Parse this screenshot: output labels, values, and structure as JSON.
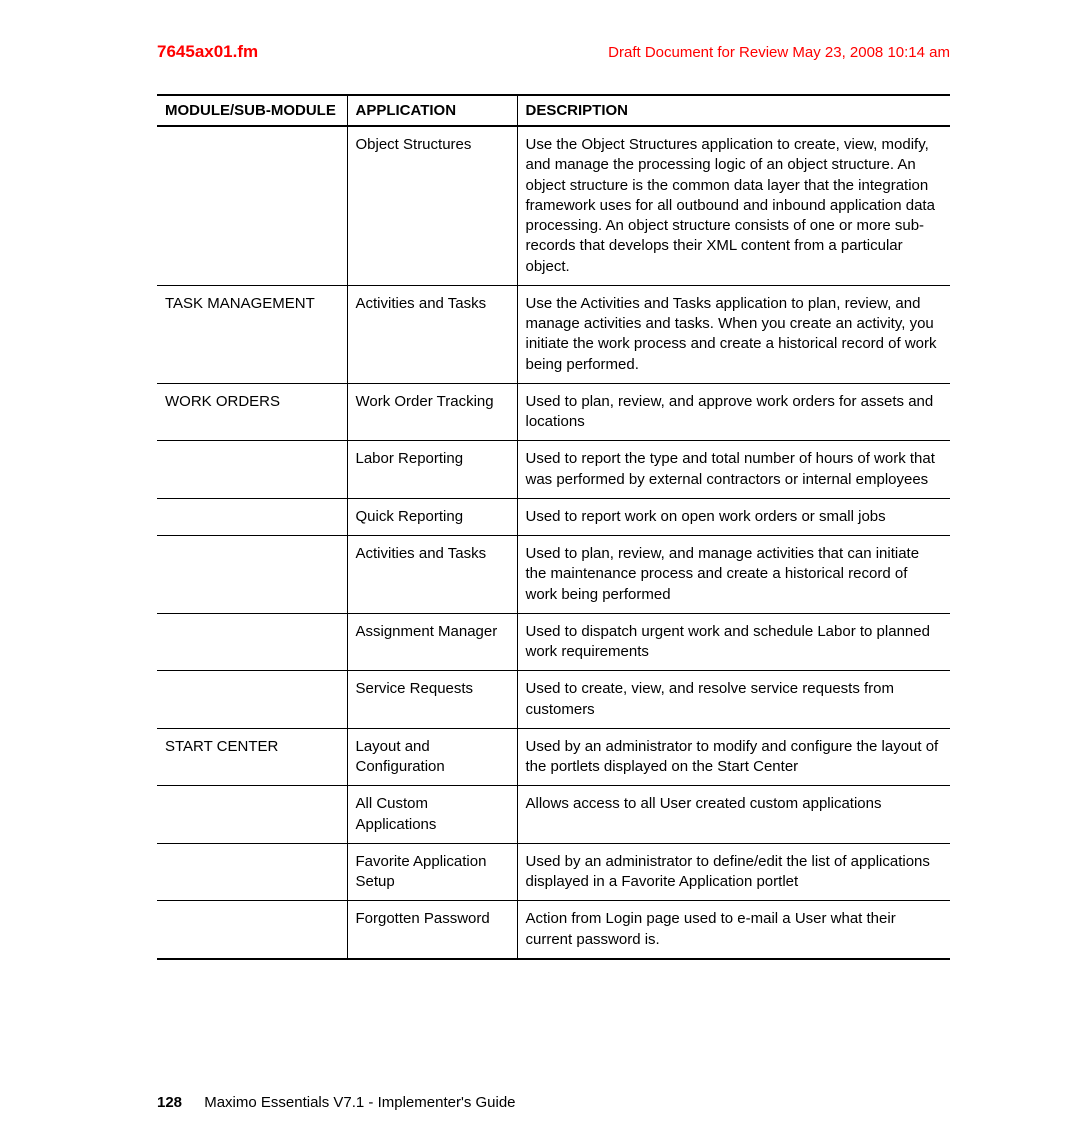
{
  "header": {
    "file": "7645ax01.fm",
    "draft": "Draft Document for Review May 23, 2008 10:14 am"
  },
  "table": {
    "columns": [
      "MODULE/SUB-MODULE",
      "APPLICATION",
      "DESCRIPTION"
    ],
    "rows": [
      {
        "module": "",
        "application": "Object Structures",
        "description": "Use the Object Structures application to create, view, modify, and manage the processing logic of an object structure. An object structure is the common data layer that the integration framework uses for all outbound and inbound application data processing. An object structure consists of one or more sub-records that develops their XML content from a particular object."
      },
      {
        "module": "TASK MANAGEMENT",
        "application": "Activities and Tasks",
        "description": "Use the Activities and Tasks application to plan, review, and manage activities and tasks. When you create an activity, you initiate the work process and create a historical record of work being performed."
      },
      {
        "module": "WORK ORDERS",
        "application": "Work Order Tracking",
        "description": "Used to plan, review, and approve work orders for assets and locations"
      },
      {
        "module": "",
        "application": "Labor Reporting",
        "description": "Used to report the type and total number of hours of work that was performed by external contractors or internal employees"
      },
      {
        "module": "",
        "application": "Quick Reporting",
        "description": "Used to report work on open work orders or small jobs"
      },
      {
        "module": "",
        "application": "Activities and Tasks",
        "description": "Used to plan, review, and manage activities that can initiate the maintenance process and create a historical record of work being performed"
      },
      {
        "module": "",
        "application": "Assignment Manager",
        "description": "Used to dispatch urgent work and schedule Labor to planned work requirements"
      },
      {
        "module": "",
        "application": "Service Requests",
        "description": "Used to create, view, and resolve service requests from customers"
      },
      {
        "module": "START CENTER",
        "application": "Layout and Configuration",
        "description": "Used by an administrator to modify and configure the layout of the portlets displayed on the Start Center"
      },
      {
        "module": "",
        "application": "All Custom Applications",
        "description": "Allows access to all User created custom applications"
      },
      {
        "module": "",
        "application": "Favorite Application Setup",
        "description": "Used by an administrator to define/edit the list of applications displayed in a Favorite Application portlet"
      },
      {
        "module": "",
        "application": "Forgotten Password",
        "description": "Action from Login page used to e-mail a User what their current password is."
      }
    ]
  },
  "footer": {
    "page": "128",
    "title": "Maximo Essentials V7.1 - Implementer's Guide"
  }
}
